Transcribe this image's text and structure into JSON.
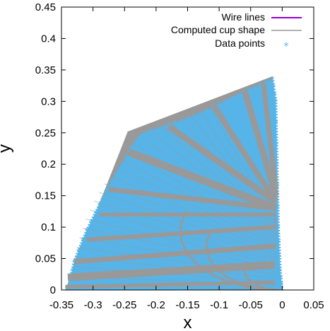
{
  "chart_data": {
    "type": "scatter",
    "title": "",
    "xlabel": "x",
    "ylabel": "y",
    "xlim": [
      -0.35,
      0.05
    ],
    "ylim": [
      0,
      0.45
    ],
    "xticks": [
      -0.35,
      -0.3,
      -0.25,
      -0.2,
      -0.15,
      -0.1,
      -0.05,
      0,
      0.05
    ],
    "xtick_labels": [
      "-0.35",
      "-0.3",
      "-0.25",
      "-0.2",
      "-0.15",
      "-0.1",
      "-0.05",
      "0",
      "0.05"
    ],
    "yticks": [
      0,
      0.05,
      0.1,
      0.15,
      0.2,
      0.25,
      0.3,
      0.35,
      0.4,
      0.45
    ],
    "ytick_labels": [
      "0",
      "0.05",
      "0.1",
      "0.15",
      "0.2",
      "0.25",
      "0.3",
      "0.35",
      "0.4",
      "0.45"
    ],
    "grid": false,
    "legend_position": "top-right",
    "series": [
      {
        "name": "Wire lines",
        "style": "line",
        "color": "#9400d3",
        "points": []
      },
      {
        "name": "Computed cup shape",
        "style": "filled-area",
        "color": "#999999",
        "outline": [
          [
            -0.344,
            0.0
          ],
          [
            -0.245,
            0.252
          ],
          [
            -0.015,
            0.34
          ],
          [
            -0.005,
            0.0
          ]
        ]
      },
      {
        "name": "Data points",
        "style": "point-region",
        "marker": "*",
        "color": "#56b4e9",
        "boundary": [
          [
            -0.34,
            0.0
          ],
          [
            -0.33,
            0.045
          ],
          [
            -0.31,
            0.095
          ],
          [
            -0.29,
            0.135
          ],
          [
            -0.275,
            0.165
          ],
          [
            -0.26,
            0.19
          ],
          [
            -0.25,
            0.205
          ],
          [
            -0.24,
            0.225
          ],
          [
            -0.225,
            0.245
          ],
          [
            -0.21,
            0.252
          ],
          [
            -0.18,
            0.262
          ],
          [
            -0.15,
            0.272
          ],
          [
            -0.12,
            0.285
          ],
          [
            -0.09,
            0.3
          ],
          [
            -0.06,
            0.315
          ],
          [
            -0.035,
            0.325
          ],
          [
            -0.015,
            0.335
          ],
          [
            -0.01,
            0.3
          ],
          [
            -0.008,
            0.2
          ],
          [
            -0.006,
            0.1
          ],
          [
            -0.003,
            0.03
          ],
          [
            0.0,
            0.0
          ]
        ],
        "radial_gaps": [
          {
            "from": [
              -0.344,
              0.005
            ],
            "to": [
              -0.012,
              0.012
            ],
            "width": 0.006
          },
          {
            "from": [
              -0.34,
              0.02
            ],
            "to": [
              -0.012,
              0.04
            ],
            "width": 0.012
          },
          {
            "from": [
              -0.33,
              0.045
            ],
            "to": [
              -0.01,
              0.07
            ],
            "width": 0.008
          },
          {
            "from": [
              -0.31,
              0.08
            ],
            "to": [
              -0.01,
              0.1
            ],
            "width": 0.007
          },
          {
            "from": [
              -0.29,
              0.12
            ],
            "to": [
              -0.01,
              0.12
            ],
            "width": 0.006
          },
          {
            "from": [
              -0.275,
              0.16
            ],
            "to": [
              -0.01,
              0.13
            ],
            "width": 0.008
          },
          {
            "from": [
              -0.245,
              0.22
            ],
            "to": [
              -0.01,
              0.13
            ],
            "width": 0.012
          },
          {
            "from": [
              -0.18,
              0.26
            ],
            "to": [
              -0.01,
              0.14
            ],
            "width": 0.01
          },
          {
            "from": [
              -0.11,
              0.295
            ],
            "to": [
              -0.01,
              0.14
            ],
            "width": 0.009
          },
          {
            "from": [
              -0.06,
              0.318
            ],
            "to": [
              -0.01,
              0.15
            ],
            "width": 0.01
          },
          {
            "from": [
              -0.03,
              0.33
            ],
            "to": [
              -0.01,
              0.16
            ],
            "width": 0.008
          }
        ],
        "arc_lines": [
          {
            "r": 0.17,
            "width": 0.003
          },
          {
            "r": 0.125,
            "width": 0.003
          },
          {
            "r": 0.06,
            "width": 0.003
          }
        ]
      }
    ]
  }
}
